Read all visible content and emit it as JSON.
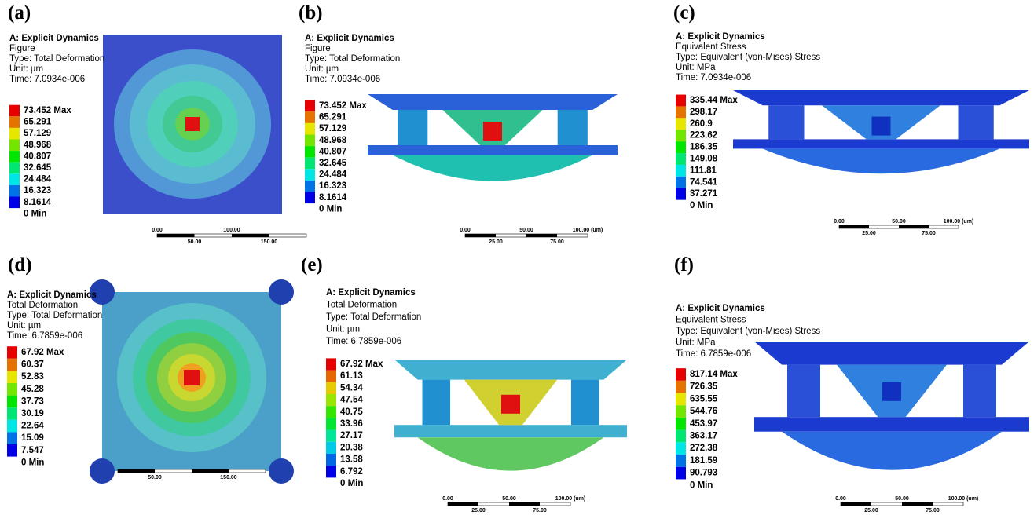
{
  "panels": [
    {
      "label": "(a)",
      "header": [
        "A: Explicit Dynamics",
        "Figure",
        "Type: Total Deformation",
        "Unit: µm",
        "Time: 7.0934e-006"
      ],
      "legend": [
        "73.452 Max",
        "65.291",
        "57.129",
        "48.968",
        "40.807",
        "32.645",
        "24.484",
        "16.323",
        "8.1614",
        "0 Min"
      ],
      "scale_top": [
        "0.00",
        "100.00"
      ],
      "scale_bottom": [
        "50.00",
        "150.00"
      ]
    },
    {
      "label": "(b)",
      "header": [
        "A: Explicit Dynamics",
        "Figure",
        "Type: Total Deformation",
        "Unit: µm",
        "Time: 7.0934e-006"
      ],
      "legend": [
        "73.452 Max",
        "65.291",
        "57.129",
        "48.968",
        "40.807",
        "32.645",
        "24.484",
        "16.323",
        "8.1614",
        "0 Min"
      ],
      "scale_top": [
        "0.00",
        "50.00",
        "100.00 (um)"
      ],
      "scale_bottom": [
        "25.00",
        "75.00"
      ]
    },
    {
      "label": "(c)",
      "header": [
        "A: Explicit Dynamics",
        "Equivalent Stress",
        "Type: Equivalent (von-Mises) Stress",
        "Unit: MPa",
        "Time: 7.0934e-006"
      ],
      "legend": [
        "335.44 Max",
        "298.17",
        "260.9",
        "223.62",
        "186.35",
        "149.08",
        "111.81",
        "74.541",
        "37.271",
        "0 Min"
      ],
      "scale_top": [
        "0.00",
        "50.00",
        "100.00 (um)"
      ],
      "scale_bottom": [
        "25.00",
        "75.00"
      ]
    },
    {
      "label": "(d)",
      "header": [
        "A: Explicit Dynamics",
        "Total Deformation",
        "Type: Total Deformation",
        "Unit: µm",
        "Time: 6.7859e-006"
      ],
      "legend": [
        "67.92 Max",
        "60.37",
        "52.83",
        "45.28",
        "37.73",
        "30.19",
        "22.64",
        "15.09",
        "7.547",
        "0 Min"
      ],
      "scale_top": [],
      "scale_bottom": [
        "50.00",
        "150.00"
      ]
    },
    {
      "label": "(e)",
      "header": [
        "A: Explicit Dynamics",
        "Total Deformation",
        "Type: Total Deformation",
        "Unit: µm",
        "Time: 6.7859e-006"
      ],
      "legend": [
        "67.92 Max",
        "61.13",
        "54.34",
        "47.54",
        "40.75",
        "33.96",
        "27.17",
        "20.38",
        "13.58",
        "6.792",
        "0 Min"
      ],
      "scale_top": [
        "0.00",
        "50.00",
        "100.00 (um)"
      ],
      "scale_bottom": [
        "25.00",
        "75.00"
      ]
    },
    {
      "label": "(f)",
      "header": [
        "A: Explicit Dynamics",
        "Equivalent Stress",
        "Type: Equivalent (von-Mises) Stress",
        "Unit: MPa",
        "Time: 6.7859e-006"
      ],
      "legend": [
        "817.14 Max",
        "726.35",
        "635.55",
        "544.76",
        "453.97",
        "363.17",
        "272.38",
        "181.59",
        "90.793",
        "0 Min"
      ],
      "scale_top": [
        "0.00",
        "50.00",
        "100.00 (um)"
      ],
      "scale_bottom": [
        "25.00",
        "75.00"
      ]
    }
  ]
}
